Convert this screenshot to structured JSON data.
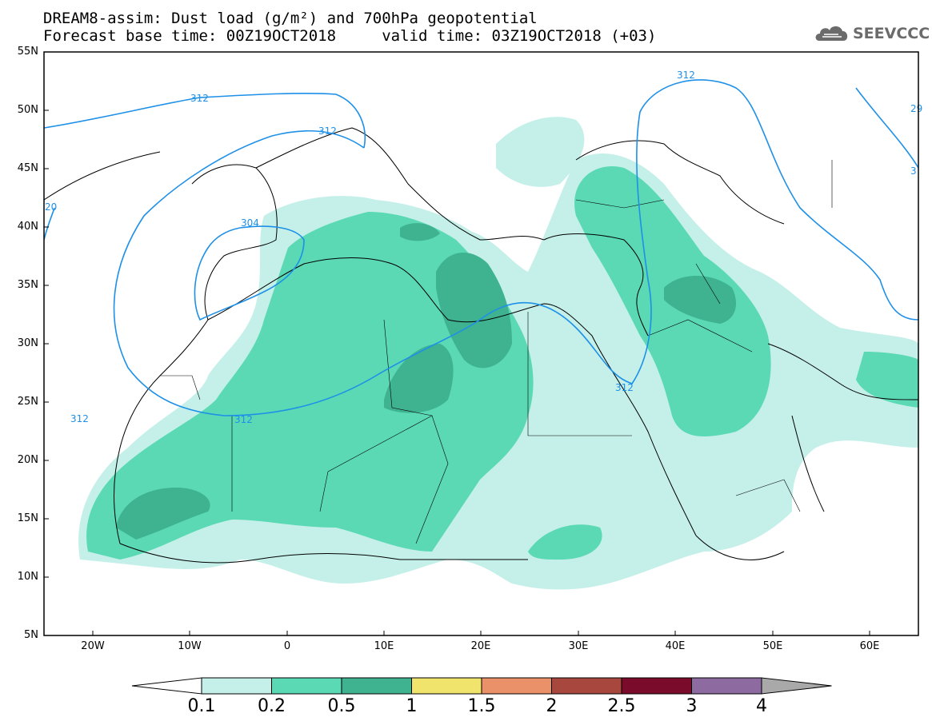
{
  "header": {
    "title_line1": "DREAM8-assim: Dust load (g/m²) and 700hPa geopotential",
    "title_line2": "Forecast base time: 00Z19OCT2018     valid time: 03Z19OCT2018 (+03)"
  },
  "logo": {
    "text": "SEEVCCC",
    "icon": "cloud-icon"
  },
  "map": {
    "lat_labels": [
      "55N",
      "50N",
      "45N",
      "40N",
      "35N",
      "30N",
      "25N",
      "20N",
      "15N",
      "10N",
      "5N"
    ],
    "lon_labels": [
      "20W",
      "10W",
      "0",
      "10E",
      "20E",
      "30E",
      "40E",
      "50E",
      "60E"
    ],
    "extent": {
      "lon": [
        -25,
        65
      ],
      "lat": [
        5,
        55
      ]
    },
    "contour_labels": [
      "312",
      "312",
      "304",
      "312",
      "312",
      "312",
      "20",
      "29",
      "3"
    ]
  },
  "colorbar": {
    "levels": [
      "0.1",
      "0.2",
      "0.5",
      "1",
      "1.5",
      "2",
      "2.5",
      "3",
      "4"
    ],
    "colors": [
      "#c4f0e9",
      "#5ad9b4",
      "#3fb28f",
      "#f0e46c",
      "#ea9169",
      "#a8473e",
      "#7b0b2a",
      "#8d6aa0",
      "#a9a9a9"
    ]
  }
}
